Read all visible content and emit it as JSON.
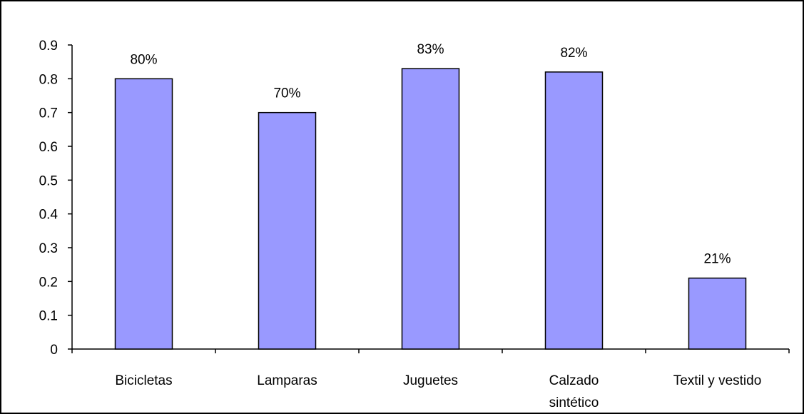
{
  "chart_data": {
    "type": "bar",
    "categories": [
      [
        "Bicicletas"
      ],
      [
        "Lamparas"
      ],
      [
        "Juguetes"
      ],
      [
        "Calzado",
        "sintético"
      ],
      [
        "Textil y vestido"
      ]
    ],
    "values": [
      0.8,
      0.7,
      0.83,
      0.82,
      0.21
    ],
    "data_labels": [
      "80%",
      "70%",
      "83%",
      "82%",
      "21%"
    ],
    "yticks": [
      "0",
      "0.1",
      "0.2",
      "0.3",
      "0.4",
      "0.5",
      "0.6",
      "0.7",
      "0.8",
      "0.9"
    ],
    "ylim": [
      0,
      0.9
    ],
    "title": "",
    "xlabel": "",
    "ylabel": "",
    "grid": false,
    "legend": "none",
    "colors": {
      "bar_fill": "#9999ff",
      "bar_stroke": "#000000",
      "axis": "#000000",
      "background": "#ffffff"
    }
  }
}
